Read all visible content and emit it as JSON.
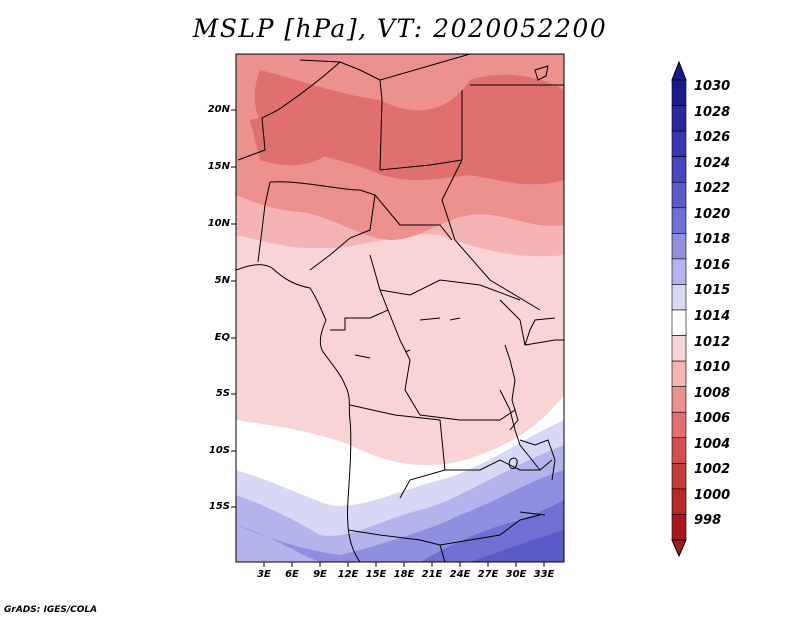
{
  "title": "MSLP [hPa], VT: 2020052200",
  "footer": "GrADS: IGES/COLA",
  "lat_labels": [
    "20N",
    "15N",
    "10N",
    "5N",
    "EQ",
    "5S",
    "10S",
    "15S"
  ],
  "lon_labels": [
    "3E",
    "6E",
    "9E",
    "12E",
    "15E",
    "18E",
    "21E",
    "24E",
    "27E",
    "30E",
    "33E"
  ],
  "colorbar": {
    "levels": [
      "1030",
      "1028",
      "1026",
      "1024",
      "1022",
      "1020",
      "1018",
      "1016",
      "1015",
      "1014",
      "1012",
      "1010",
      "1008",
      "1006",
      "1004",
      "1002",
      "1000",
      "998"
    ],
    "colors": [
      "#1a1a8c",
      "#2a2aa0",
      "#3838b4",
      "#4646c0",
      "#5a5ac8",
      "#7070d4",
      "#8f8fe0",
      "#b4b4ec",
      "#d8d8f6",
      "#ffffff",
      "#f8d4d4",
      "#f4b4b4",
      "#ec9090",
      "#e07070",
      "#d45050",
      "#c83c3c",
      "#b82828",
      "#a81818"
    ]
  }
}
